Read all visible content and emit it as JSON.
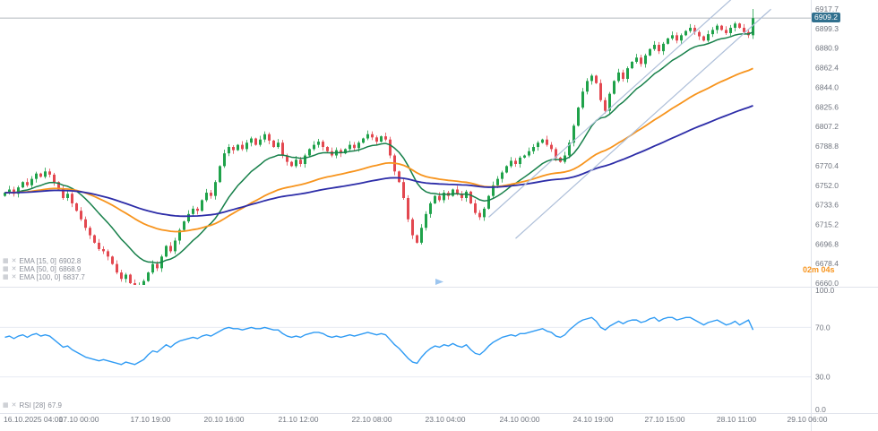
{
  "price_badge": "6909.2",
  "countdown": "02m 04s",
  "icons": {
    "chart_type": "▦",
    "remove": "✕"
  },
  "legend": {
    "emas": [
      {
        "label": "EMA [15, 0]",
        "value": "6902.8"
      },
      {
        "label": "EMA [50, 0]",
        "value": "6868.9"
      },
      {
        "label": "EMA [100, 0]",
        "value": "6837.7"
      }
    ],
    "rsi": {
      "label": "RSI [28]",
      "value": "67.9"
    }
  },
  "colors": {
    "up": "#1fa24a",
    "down": "#e34850",
    "ema15": "#17804a",
    "ema50": "#f7941d",
    "ema100": "#2d2da8",
    "rsi": "#2f9bf4",
    "channel": "#aebfd9",
    "badge": "#31708e",
    "axis_text": "#70757f",
    "grid": "#e0e3eb",
    "price_line": "#9aa0a8",
    "rsi_guide": "#e8ebf2"
  },
  "chart_data": [
    {
      "type": "candlestick",
      "title": "",
      "xlabel": "",
      "ylabel": "",
      "ylim": [
        6655,
        6926
      ],
      "last_price": 6909.2,
      "final_high": 6917.7,
      "y_ticks": [
        6917.7,
        6899.3,
        6880.9,
        6862.4,
        6844.0,
        6825.6,
        6807.2,
        6788.8,
        6770.4,
        6752.0,
        6733.6,
        6715.2,
        6696.8,
        6678.4,
        6660.0
      ],
      "x_tick_labels": [
        "16.10.2025 04:00",
        "17.10 00:00",
        "17.10 19:00",
        "20.10 16:00",
        "21.10 12:00",
        "22.10 08:00",
        "23.10 04:00",
        "24.10 00:00",
        "24.10 19:00",
        "27.10 15:00",
        "28.10 11:00",
        "29.10 06:00"
      ],
      "x_tick_pos": [
        4,
        88,
        168,
        250,
        333,
        415,
        497,
        580,
        662,
        742,
        822,
        901
      ],
      "closes": [
        6745,
        6748,
        6744,
        6750,
        6755,
        6752,
        6758,
        6763,
        6760,
        6765,
        6762,
        6755,
        6748,
        6740,
        6744,
        6735,
        6728,
        6720,
        6712,
        6705,
        6698,
        6692,
        6690,
        6685,
        6678,
        6670,
        6664,
        6668,
        6660,
        6655,
        6658,
        6662,
        6670,
        6678,
        6674,
        6685,
        6695,
        6690,
        6700,
        6710,
        6718,
        6725,
        6730,
        6728,
        6738,
        6745,
        6742,
        6755,
        6770,
        6782,
        6788,
        6785,
        6790,
        6786,
        6792,
        6796,
        6790,
        6795,
        6800,
        6794,
        6788,
        6792,
        6780,
        6774,
        6770,
        6776,
        6772,
        6780,
        6786,
        6790,
        6793,
        6788,
        6784,
        6780,
        6785,
        6782,
        6786,
        6790,
        6787,
        6792,
        6796,
        6800,
        6797,
        6793,
        6798,
        6795,
        6780,
        6765,
        6755,
        6740,
        6720,
        6705,
        6698,
        6712,
        6725,
        6735,
        6742,
        6738,
        6745,
        6742,
        6748,
        6744,
        6740,
        6746,
        6735,
        6726,
        6722,
        6730,
        6742,
        6752,
        6758,
        6764,
        6770,
        6775,
        6772,
        6778,
        6780,
        6784,
        6788,
        6792,
        6795,
        6790,
        6786,
        6778,
        6774,
        6780,
        6792,
        6808,
        6825,
        6840,
        6850,
        6855,
        6848,
        6832,
        6822,
        6838,
        6850,
        6858,
        6852,
        6862,
        6868,
        6872,
        6866,
        6874,
        6880,
        6884,
        6878,
        6885,
        6890,
        6893,
        6888,
        6893,
        6897,
        6900,
        6896,
        6892,
        6888,
        6894,
        6898,
        6902,
        6898,
        6895,
        6900,
        6904,
        6900,
        6896,
        6893,
        6909
      ],
      "overlays": [
        {
          "name": "EMA",
          "period": 15,
          "color_key": "ema15"
        },
        {
          "name": "EMA",
          "period": 50,
          "color_key": "ema50"
        },
        {
          "name": "EMA",
          "period": 100,
          "color_key": "ema100"
        }
      ],
      "trend_channel": [
        {
          "i1": 108,
          "p1": 6722,
          "i2": 163,
          "p2": 6930
        },
        {
          "i1": 114,
          "p1": 6702,
          "i2": 171,
          "p2": 6917.5
        }
      ]
    },
    {
      "type": "line",
      "title": "",
      "name": "RSI [28]",
      "last_value": 67.9,
      "ylim": [
        0,
        100
      ],
      "y_ticks": [
        100.0,
        70.0,
        30.0,
        0.0
      ],
      "guide_levels": [
        70,
        30
      ],
      "values": [
        62,
        63,
        61,
        63,
        64,
        62,
        64,
        65,
        63,
        64,
        63,
        60,
        57,
        54,
        55,
        52,
        50,
        48,
        46,
        45,
        44,
        43,
        44,
        43,
        42,
        41,
        40,
        42,
        41,
        40,
        42,
        44,
        48,
        51,
        50,
        53,
        56,
        54,
        57,
        59,
        60,
        61,
        62,
        61,
        63,
        64,
        63,
        65,
        67,
        69,
        70,
        69,
        69,
        68,
        69,
        70,
        69,
        69,
        70,
        69,
        68,
        68,
        65,
        63,
        62,
        63,
        62,
        64,
        65,
        66,
        66,
        65,
        63,
        62,
        63,
        62,
        63,
        64,
        63,
        64,
        65,
        66,
        65,
        64,
        65,
        64,
        60,
        56,
        53,
        49,
        45,
        42,
        41,
        46,
        50,
        53,
        55,
        54,
        56,
        55,
        57,
        55,
        54,
        56,
        52,
        49,
        48,
        51,
        55,
        58,
        60,
        62,
        63,
        64,
        63,
        65,
        65,
        66,
        67,
        68,
        69,
        67,
        66,
        63,
        62,
        64,
        68,
        71,
        74,
        76,
        77,
        78,
        75,
        70,
        68,
        71,
        73,
        75,
        73,
        75,
        76,
        76,
        74,
        75,
        77,
        78,
        75,
        77,
        78,
        78,
        76,
        77,
        78,
        78,
        76,
        74,
        72,
        74,
        75,
        76,
        74,
        72,
        73,
        75,
        72,
        74,
        76,
        68
      ]
    }
  ]
}
